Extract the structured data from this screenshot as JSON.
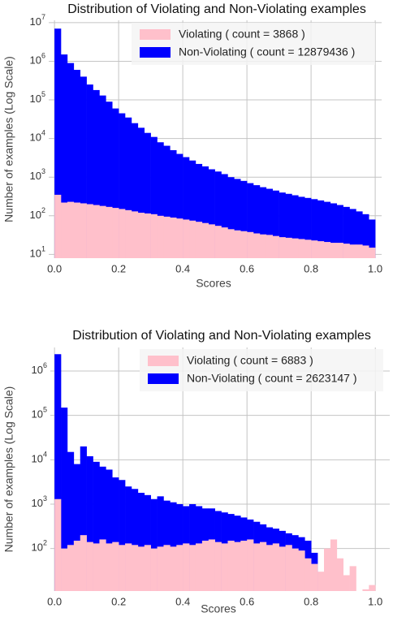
{
  "chart_data": [
    {
      "type": "histogram",
      "title": "Distribution of Violating and Non-Violating examples",
      "xlabel": "Scores",
      "ylabel": "Number of examples (Log Scale)",
      "log_y": true,
      "grid": true,
      "legend": "upper right",
      "xlim": [
        -0.018,
        1.02
      ],
      "ylim": [
        8,
        11500000
      ],
      "xticks": [
        {
          "value": 0,
          "label": "0.0"
        },
        0.2,
        0.4,
        0.6,
        0.8,
        {
          "value": 1,
          "label": "1.0"
        }
      ],
      "yticks": [
        {
          "value": 10,
          "label": "10^1"
        },
        {
          "value": 100,
          "label": "10^2"
        },
        {
          "value": 1000,
          "label": "10^3"
        },
        {
          "value": 10000,
          "label": "10^4"
        },
        {
          "value": 100000,
          "label": "10^5"
        },
        {
          "value": 1000000,
          "label": "10^6"
        },
        {
          "value": 10000000,
          "label": "10^7"
        }
      ],
      "bins": [
        0,
        0.02,
        0.04,
        0.06,
        0.08,
        0.1,
        0.12,
        0.14,
        0.16,
        0.18,
        0.2,
        0.22,
        0.24,
        0.26,
        0.28,
        0.3,
        0.32,
        0.34,
        0.36,
        0.38,
        0.4,
        0.42,
        0.44,
        0.46,
        0.48,
        0.5,
        0.52,
        0.54,
        0.56,
        0.58,
        0.6,
        0.62,
        0.64,
        0.66,
        0.68,
        0.7,
        0.72,
        0.74,
        0.76,
        0.78,
        0.8,
        0.82,
        0.84,
        0.86,
        0.88,
        0.9,
        0.92,
        0.94,
        0.96,
        0.98,
        1
      ],
      "series": [
        {
          "name": "Non-Violating ( count = 12879436 )",
          "color": "#0000ff",
          "values": [
            7000000,
            1500000,
            900000,
            600000,
            400000,
            250000,
            180000,
            130000,
            90000,
            60000,
            45000,
            35000,
            25000,
            19000,
            14000,
            11000,
            8000,
            6500,
            5000,
            4000,
            3300,
            2700,
            2200,
            1900,
            1600,
            1400,
            1200,
            1000,
            900,
            800,
            700,
            620,
            550,
            500,
            450,
            400,
            370,
            340,
            310,
            290,
            270,
            250,
            230,
            210,
            190,
            170,
            150,
            130,
            110,
            80
          ]
        },
        {
          "name": "Violating ( count = 3868 )",
          "color": "#ffc0cb",
          "values": [
            350,
            220,
            230,
            220,
            210,
            200,
            190,
            180,
            170,
            160,
            150,
            140,
            130,
            120,
            115,
            110,
            100,
            95,
            90,
            85,
            80,
            75,
            70,
            65,
            60,
            55,
            50,
            45,
            42,
            40,
            38,
            35,
            33,
            32,
            30,
            28,
            27,
            26,
            25,
            24,
            23,
            22,
            21,
            20,
            20,
            19,
            18,
            18,
            17,
            15
          ]
        }
      ]
    },
    {
      "type": "histogram",
      "title": "Distribution of Violating and Non-Violating examples",
      "xlabel": "Scores",
      "ylabel": "Number of examples (Log Scale)",
      "log_y": true,
      "grid": true,
      "legend": "upper right",
      "xlim": [
        -0.013,
        1.045
      ],
      "ylim": [
        11,
        3400000
      ],
      "xticks": [
        {
          "value": 0,
          "label": "0.0"
        },
        0.2,
        0.4,
        0.6,
        0.8,
        {
          "value": 1,
          "label": "1.0"
        }
      ],
      "yticks": [
        {
          "value": 100,
          "label": "10^2"
        },
        {
          "value": 1000,
          "label": "10^3"
        },
        {
          "value": 10000,
          "label": "10^4"
        },
        {
          "value": 100000,
          "label": "10^5"
        },
        {
          "value": 1000000,
          "label": "10^6"
        }
      ],
      "bins": [
        0,
        0.02,
        0.04,
        0.06,
        0.08,
        0.1,
        0.12,
        0.14,
        0.16,
        0.18,
        0.2,
        0.22,
        0.24,
        0.26,
        0.28,
        0.3,
        0.32,
        0.34,
        0.36,
        0.38,
        0.4,
        0.42,
        0.44,
        0.46,
        0.48,
        0.5,
        0.52,
        0.54,
        0.56,
        0.58,
        0.6,
        0.62,
        0.64,
        0.66,
        0.68,
        0.7,
        0.72,
        0.74,
        0.76,
        0.78,
        0.8,
        0.82,
        0.84,
        0.86,
        0.88,
        0.9,
        0.92,
        0.94,
        0.96,
        0.98,
        1
      ],
      "series": [
        {
          "name": "Non-Violating ( count = 2623147 )",
          "color": "#0000ff",
          "values": [
            2400000,
            150000,
            15000,
            8000,
            20000,
            12000,
            9000,
            7000,
            6000,
            4000,
            3500,
            2500,
            2200,
            1800,
            1600,
            1300,
            1500,
            1200,
            1100,
            1000,
            900,
            1000,
            900,
            800,
            800,
            700,
            650,
            600,
            550,
            500,
            450,
            400,
            350,
            300,
            280,
            250,
            220,
            200,
            180,
            150,
            80,
            null,
            null,
            null,
            null,
            null,
            null,
            null,
            null,
            null
          ]
        },
        {
          "name": "Violating ( count = 6883 )",
          "color": "#ffc0cb",
          "values": [
            1300,
            100,
            120,
            150,
            200,
            140,
            130,
            160,
            130,
            140,
            120,
            130,
            120,
            110,
            120,
            100,
            110,
            120,
            110,
            120,
            130,
            120,
            130,
            150,
            160,
            140,
            130,
            150,
            140,
            150,
            160,
            130,
            140,
            120,
            130,
            110,
            120,
            100,
            90,
            60,
            45,
            30,
            100,
            160,
            60,
            25,
            40,
            null,
            12,
            15
          ]
        }
      ]
    }
  ]
}
